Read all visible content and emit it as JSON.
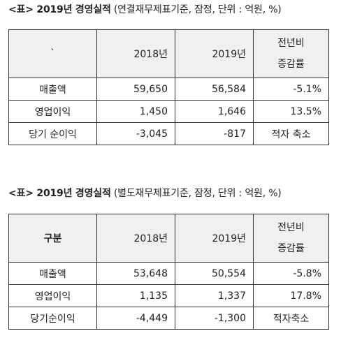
{
  "tables": [
    {
      "caption_bold": "<표> 2019년 경영실적",
      "caption_note": " (연결재무제표기준, 잠정, 단위 : 억원, %)",
      "header": {
        "label": "`",
        "y2018": "2018년",
        "y2019": "2019년",
        "change_line1": "전년비",
        "change_line2": "증감률"
      },
      "rows": [
        {
          "name": "매출액",
          "v2018": "59,650",
          "v2019": "56,584",
          "change": "-5.1%"
        },
        {
          "name": "영업이익",
          "v2018": "1,450",
          "v2019": "1,646",
          "change": "13.5%"
        },
        {
          "name": "당기 순이익",
          "v2018": "-3,045",
          "v2019": "-817",
          "change": "적자 축소"
        }
      ]
    },
    {
      "caption_bold": "<표> 2019년 경영실적",
      "caption_note": " (별도재무제표기준, 잠정, 단위 : 억원, %)",
      "header": {
        "label": "구분",
        "y2018": "2018년",
        "y2019": "2019년",
        "change_line1": "전년비",
        "change_line2": "증감률"
      },
      "rows": [
        {
          "name": "매출액",
          "v2018": "53,648",
          "v2019": "50,554",
          "change": "-5.8%"
        },
        {
          "name": "영업이익",
          "v2018": "1,135",
          "v2019": "1,337",
          "change": "17.8%"
        },
        {
          "name": "당기순이익",
          "v2018": "-4,449",
          "v2019": "-1,300",
          "change": "적자축소"
        }
      ]
    }
  ]
}
